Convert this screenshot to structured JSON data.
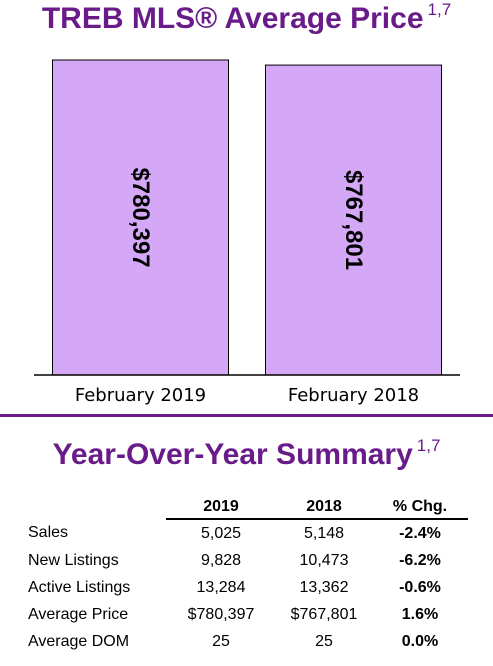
{
  "title": "TREB MLS® Average Price",
  "title_note": "1,7",
  "chart_data": {
    "type": "bar",
    "categories": [
      "February 2019",
      "February 2018"
    ],
    "values": [
      780397,
      767801
    ],
    "value_labels": [
      "$780,397",
      "$767,801"
    ],
    "bar_color": "#d4a8f7"
  },
  "summary": {
    "title": "Year-Over-Year Summary",
    "title_note": "1,7",
    "headers": [
      "",
      "2019",
      "2018",
      "% Chg."
    ],
    "rows": [
      {
        "label": "Sales",
        "v2019": "5,025",
        "v2018": "5,148",
        "chg": "-2.4%"
      },
      {
        "label": "New Listings",
        "v2019": "9,828",
        "v2018": "10,473",
        "chg": "-6.2%"
      },
      {
        "label": "Active Listings",
        "v2019": "13,284",
        "v2018": "13,362",
        "chg": "-0.6%"
      },
      {
        "label": "Average Price",
        "v2019": "$780,397",
        "v2018": "$767,801",
        "chg": "1.6%"
      },
      {
        "label": "Average DOM",
        "v2019": "25",
        "v2018": "25",
        "chg": "0.0%"
      }
    ]
  },
  "colors": {
    "accent": "#6a1b8a",
    "bar": "#d4a8f7"
  }
}
